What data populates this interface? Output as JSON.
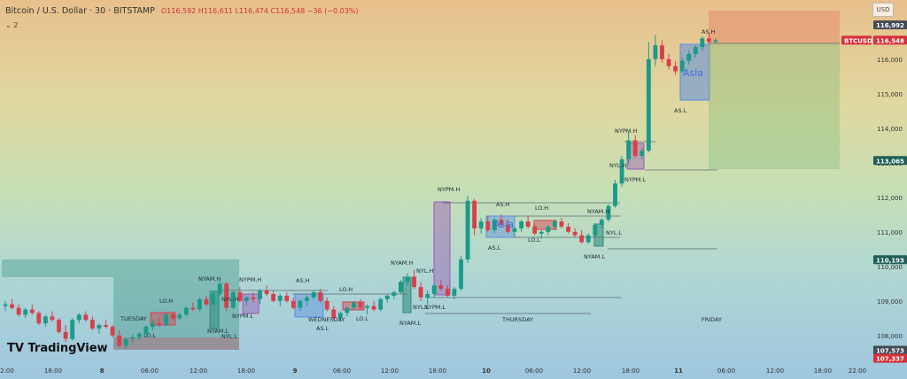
{
  "header": {
    "title": "Bitcoin / U.S. Dollar · 30 · BITSTAMP",
    "ohlc": "O116,592 H116,611 L116,474 C116,548 −36 (−0.03%)",
    "indicator_count": "2",
    "currency_button": "USD"
  },
  "brand": "TradingView",
  "colors": {
    "up": "#1a9a8a",
    "down": "#d6404c",
    "asia": "#5b8ee0",
    "london": "#e26b6b",
    "ny": "#9b59b6",
    "nyam": "#2e8b7a"
  },
  "chart_data": {
    "type": "candlestick",
    "symbol": "BTCUSD",
    "interval": "30",
    "y_axis": {
      "ticks": [
        "116,000",
        "115,000",
        "114,000",
        "113,000",
        "112,000",
        "111,000",
        "110,000",
        "109,000",
        "108,000"
      ],
      "ylim": [
        107200,
        117200
      ]
    },
    "x_axis_ticks": [
      "2:00",
      "18:00",
      "8",
      "06:00",
      "12:00",
      "18:00",
      "9",
      "06:00",
      "12:00",
      "18:00",
      "10",
      "06:00",
      "12:00",
      "18:00",
      "11",
      "06:00",
      "12:00",
      "18:00",
      "22:00"
    ],
    "price_labels": [
      {
        "text": "116,992",
        "value": 116992,
        "color": "#444b55"
      },
      {
        "text": "BTCUSD",
        "value": 116548,
        "color": "#d6303a"
      },
      {
        "text": "116,548",
        "value": 116548,
        "color": "#d6303a"
      },
      {
        "text": "113,065",
        "value": 113065,
        "color": "#1f5f57"
      },
      {
        "text": "110,193",
        "value": 110193,
        "color": "#1f5f57"
      },
      {
        "text": "107,573",
        "value": 107573,
        "color": "#444b55"
      },
      {
        "text": "107,337",
        "value": 107337,
        "color": "#d6303a"
      }
    ],
    "session_labels": [
      "TUESDAY",
      "WEDNESDAY",
      "THURSDAY",
      "FRIDAY"
    ],
    "level_labels": [
      "LO.H",
      "LO.L",
      "NYAM.H",
      "NYAM.L",
      "NYL.H",
      "NYL.L",
      "NYPM.H",
      "NYPM.L",
      "AS.H",
      "AS.L",
      "Asia"
    ],
    "annotations": [
      {
        "text": "LO.H",
        "x": 180,
        "y": 342
      },
      {
        "text": "LO.L",
        "x": 162,
        "y": 381
      },
      {
        "text": "TUESDAY",
        "x": 136,
        "y": 362
      },
      {
        "text": "NYAM.H",
        "x": 224,
        "y": 317
      },
      {
        "text": "NYAM.L",
        "x": 234,
        "y": 376
      },
      {
        "text": "NYL.H",
        "x": 250,
        "y": 340
      },
      {
        "text": "NYL.L",
        "x": 250,
        "y": 382
      },
      {
        "text": "NYPM.L",
        "x": 262,
        "y": 359
      },
      {
        "text": "NYPM.H",
        "x": 270,
        "y": 318
      },
      {
        "text": "AS.H",
        "x": 334,
        "y": 319
      },
      {
        "text": "WEDNESDAY",
        "x": 348,
        "y": 363
      },
      {
        "text": "AS.L",
        "x": 357,
        "y": 373
      },
      {
        "text": "LO.H",
        "x": 383,
        "y": 329
      },
      {
        "text": "LO.L",
        "x": 402,
        "y": 362
      },
      {
        "text": "NYAM.H",
        "x": 441,
        "y": 299
      },
      {
        "text": "NYAM.L",
        "x": 451,
        "y": 367
      },
      {
        "text": "NYL.H",
        "x": 470,
        "y": 308
      },
      {
        "text": "NYL.L",
        "x": 466,
        "y": 349
      },
      {
        "text": "NYPM.L",
        "x": 479,
        "y": 349
      },
      {
        "text": "NYPM.H",
        "x": 494,
        "y": 216
      },
      {
        "text": "AS.H",
        "x": 560,
        "y": 233
      },
      {
        "text": "Asia",
        "x": 557,
        "y": 257
      },
      {
        "text": "AS.L",
        "x": 551,
        "y": 282
      },
      {
        "text": "LO.H",
        "x": 604,
        "y": 237
      },
      {
        "text": "LO.L",
        "x": 596,
        "y": 273
      },
      {
        "text": "THURSDAY",
        "x": 567,
        "y": 363
      },
      {
        "text": "NYAM.H",
        "x": 663,
        "y": 241
      },
      {
        "text": "NYL.L",
        "x": 684,
        "y": 265
      },
      {
        "text": "NYAM.L",
        "x": 659,
        "y": 292
      },
      {
        "text": "NYPM.H",
        "x": 694,
        "y": 150
      },
      {
        "text": "NYL.H",
        "x": 688,
        "y": 189
      },
      {
        "text": "NYPM.L",
        "x": 705,
        "y": 205
      },
      {
        "text": "AS.H",
        "x": 792,
        "y": 38
      },
      {
        "text": "Asia",
        "x": 771,
        "y": 86
      },
      {
        "text": "AS.L",
        "x": 761,
        "y": 127
      },
      {
        "text": "FRIDAY",
        "x": 792,
        "y": 363
      }
    ],
    "candles": [
      [
        108850,
        109000,
        108700,
        108900
      ],
      [
        108900,
        109050,
        108750,
        108800
      ],
      [
        108800,
        108900,
        108550,
        108600
      ],
      [
        108600,
        108800,
        108500,
        108750
      ],
      [
        108750,
        108900,
        108600,
        108650
      ],
      [
        108650,
        108700,
        108300,
        108350
      ],
      [
        108350,
        108600,
        108250,
        108550
      ],
      [
        108550,
        108700,
        108400,
        108450
      ],
      [
        108450,
        108500,
        108050,
        108100
      ],
      [
        108100,
        108300,
        107800,
        107900
      ],
      [
        107900,
        108500,
        107850,
        108450
      ],
      [
        108450,
        108650,
        108350,
        108600
      ],
      [
        108600,
        108700,
        108400,
        108450
      ],
      [
        108450,
        108550,
        108150,
        108200
      ],
      [
        108200,
        108350,
        108050,
        108300
      ],
      [
        108300,
        108450,
        108200,
        108250
      ],
      [
        108250,
        108300,
        107950,
        108000
      ],
      [
        108000,
        108150,
        107650,
        107700
      ],
      [
        107700,
        107950,
        107600,
        107900
      ],
      [
        107900,
        108050,
        107800,
        107950
      ],
      [
        107950,
        108100,
        107850,
        108050
      ],
      [
        108050,
        108300,
        107950,
        108250
      ],
      [
        108250,
        108450,
        108150,
        108350
      ],
      [
        108350,
        108500,
        108250,
        108300
      ],
      [
        108300,
        108650,
        108250,
        108600
      ],
      [
        108600,
        108700,
        108450,
        108500
      ],
      [
        108500,
        108650,
        108450,
        108600
      ],
      [
        108600,
        108850,
        108550,
        108800
      ],
      [
        108800,
        108950,
        108700,
        108750
      ],
      [
        108750,
        109100,
        108700,
        109050
      ],
      [
        109050,
        109150,
        108850,
        108900
      ],
      [
        108900,
        109250,
        108850,
        109200
      ],
      [
        109200,
        109600,
        109150,
        109500
      ],
      [
        109500,
        109550,
        108700,
        108800
      ],
      [
        108800,
        109300,
        108750,
        109250
      ],
      [
        109250,
        109400,
        108950,
        109000
      ],
      [
        109000,
        109150,
        108850,
        109100
      ],
      [
        109100,
        109250,
        108950,
        109050
      ],
      [
        109050,
        109350,
        108900,
        109300
      ],
      [
        109300,
        109450,
        109150,
        109200
      ],
      [
        109200,
        109300,
        108950,
        109000
      ],
      [
        109000,
        109200,
        108850,
        109150
      ],
      [
        109150,
        109250,
        108950,
        109000
      ],
      [
        109000,
        109100,
        108750,
        108800
      ],
      [
        108800,
        109050,
        108700,
        109000
      ],
      [
        109000,
        109150,
        108850,
        109100
      ],
      [
        109100,
        109300,
        109050,
        109250
      ],
      [
        109250,
        109350,
        108950,
        109000
      ],
      [
        109000,
        109100,
        108700,
        108750
      ],
      [
        108750,
        108850,
        108450,
        108500
      ],
      [
        108500,
        108700,
        108400,
        108650
      ],
      [
        108650,
        108850,
        108550,
        108800
      ],
      [
        108800,
        109000,
        108750,
        108950
      ],
      [
        108950,
        109050,
        108750,
        108800
      ],
      [
        108800,
        108900,
        108600,
        108850
      ],
      [
        108850,
        109000,
        108700,
        108750
      ],
      [
        108750,
        109100,
        108700,
        109050
      ],
      [
        109050,
        109200,
        108950,
        109150
      ],
      [
        109150,
        109300,
        109050,
        109250
      ],
      [
        109250,
        109600,
        109200,
        109550
      ],
      [
        109550,
        109800,
        109450,
        109700
      ],
      [
        109700,
        109900,
        109350,
        109400
      ],
      [
        109400,
        109550,
        109000,
        109100
      ],
      [
        109100,
        109300,
        108900,
        109200
      ],
      [
        109200,
        109500,
        109100,
        109450
      ],
      [
        109450,
        109600,
        109300,
        109350
      ],
      [
        109350,
        109450,
        109100,
        109150
      ],
      [
        109150,
        109400,
        109050,
        109350
      ],
      [
        109350,
        110300,
        109300,
        110200
      ],
      [
        110200,
        112050,
        110100,
        111900
      ],
      [
        111900,
        111950,
        110900,
        111100
      ],
      [
        111100,
        111400,
        110950,
        111300
      ],
      [
        111300,
        111450,
        111000,
        111050
      ],
      [
        111050,
        111400,
        110950,
        111350
      ],
      [
        111350,
        111500,
        111150,
        111200
      ],
      [
        111200,
        111350,
        110950,
        111000
      ],
      [
        111000,
        111150,
        110850,
        111100
      ],
      [
        111100,
        111350,
        111000,
        111300
      ],
      [
        111300,
        111450,
        111100,
        111150
      ],
      [
        111150,
        111200,
        110900,
        110950
      ],
      [
        110950,
        111050,
        110800,
        111000
      ],
      [
        111000,
        111200,
        110900,
        111150
      ],
      [
        111150,
        111350,
        111050,
        111300
      ],
      [
        111300,
        111400,
        111100,
        111150
      ],
      [
        111150,
        111250,
        110950,
        111000
      ],
      [
        111000,
        111100,
        110850,
        110900
      ],
      [
        110900,
        111050,
        110650,
        110700
      ],
      [
        110700,
        110950,
        110650,
        110900
      ],
      [
        110900,
        111250,
        110850,
        111200
      ],
      [
        111200,
        111400,
        111100,
        111350
      ],
      [
        111350,
        111800,
        111300,
        111750
      ],
      [
        111750,
        112500,
        111700,
        112400
      ],
      [
        112400,
        113200,
        112300,
        113100
      ],
      [
        113100,
        113900,
        112950,
        113650
      ],
      [
        113650,
        113800,
        113150,
        113200
      ],
      [
        113200,
        113450,
        113100,
        113350
      ],
      [
        113350,
        116500,
        113300,
        116000
      ],
      [
        116000,
        116700,
        115800,
        116400
      ],
      [
        116400,
        116550,
        115900,
        116000
      ],
      [
        116000,
        116150,
        115700,
        115800
      ],
      [
        115800,
        115950,
        115550,
        115650
      ],
      [
        115650,
        116050,
        115600,
        115950
      ],
      [
        115950,
        116250,
        115850,
        116150
      ],
      [
        116150,
        116400,
        116050,
        116350
      ],
      [
        116350,
        116650,
        116250,
        116600
      ],
      [
        116600,
        116750,
        116450,
        116500
      ],
      [
        116500,
        116611,
        116474,
        116548
      ]
    ]
  }
}
